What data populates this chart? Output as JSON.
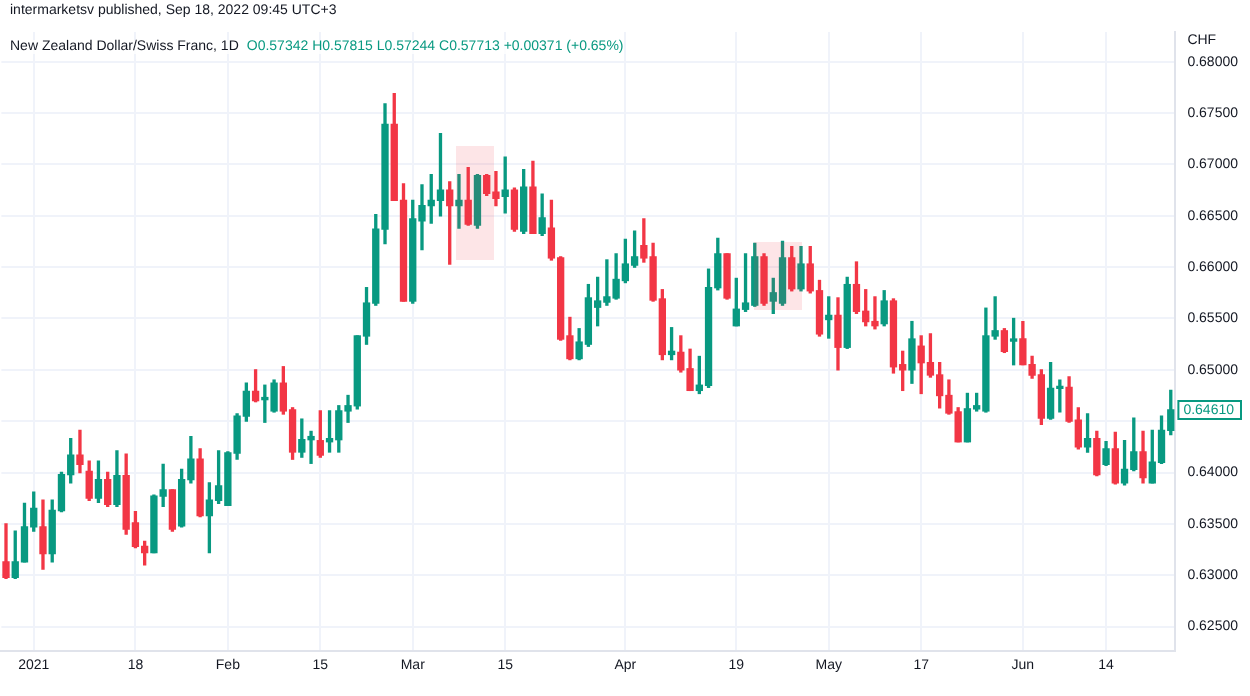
{
  "chart_data": {
    "type": "candlestick",
    "title": "New Zealand Dollar/Swiss Franc, 1D",
    "subtitle": "O0.57342 H0.57815 L0.57244 C0.57713 +0.00371 (+0.65%)",
    "ylabel": "CHF",
    "annotations": [
      "intermarketsv published, Sep 18, 2022 09:45 UTC+3",
      {
        "text": "0.64610",
        "y": 0.6461
      }
    ],
    "categories": [
      null,
      null,
      null,
      "2021",
      null,
      null,
      null,
      null,
      null,
      null,
      null,
      null,
      null,
      null,
      "18",
      null,
      null,
      null,
      null,
      null,
      null,
      null,
      null,
      null,
      "Feb",
      null,
      null,
      null,
      null,
      null,
      null,
      null,
      null,
      null,
      "15",
      null,
      null,
      null,
      null,
      null,
      null,
      null,
      null,
      null,
      "Mar",
      null,
      null,
      null,
      null,
      null,
      null,
      null,
      null,
      null,
      "15",
      null,
      null,
      null,
      null,
      null,
      null,
      null,
      null,
      null,
      null,
      null,
      null,
      "Apr",
      null,
      null,
      null,
      null,
      null,
      null,
      null,
      null,
      null,
      null,
      null,
      "19",
      null,
      null,
      null,
      null,
      null,
      null,
      null,
      null,
      null,
      "May",
      null,
      null,
      null,
      null,
      null,
      null,
      null,
      null,
      null,
      "17",
      null,
      null,
      null,
      null,
      null,
      null,
      null,
      null,
      null,
      null,
      "Jun",
      null,
      null,
      null,
      null,
      null,
      null,
      null,
      null,
      "14",
      null,
      null,
      null,
      null,
      null,
      null,
      null
    ],
    "ohlc": [
      [
        0.6313,
        0.635,
        0.6297,
        0.6298
      ],
      [
        0.6298,
        0.6343,
        0.6297,
        0.6313
      ],
      [
        0.6313,
        0.637,
        0.6313,
        0.6347
      ],
      [
        0.6347,
        0.6381,
        0.6343,
        0.6365
      ],
      [
        0.6347,
        0.6373,
        0.6306,
        0.6321
      ],
      [
        0.6321,
        0.6373,
        0.6313,
        0.6363
      ],
      [
        0.6363,
        0.64,
        0.6362,
        0.6398
      ],
      [
        0.6398,
        0.6433,
        0.639,
        0.6417
      ],
      [
        0.6417,
        0.6441,
        0.64,
        0.6408
      ],
      [
        0.6401,
        0.6411,
        0.6373,
        0.6375
      ],
      [
        0.6375,
        0.6411,
        0.6371,
        0.6393
      ],
      [
        0.6393,
        0.64,
        0.6367,
        0.6369
      ],
      [
        0.6369,
        0.6421,
        0.6367,
        0.6397
      ],
      [
        0.6397,
        0.6418,
        0.634,
        0.6345
      ],
      [
        0.6351,
        0.6362,
        0.6327,
        0.6328
      ],
      [
        0.6328,
        0.6333,
        0.631,
        0.6322
      ],
      [
        0.6322,
        0.6378,
        0.6322,
        0.6377
      ],
      [
        0.6377,
        0.6408,
        0.6367,
        0.6383
      ],
      [
        0.6383,
        0.6383,
        0.6343,
        0.6345
      ],
      [
        0.6348,
        0.6403,
        0.6347,
        0.6393
      ],
      [
        0.6393,
        0.6435,
        0.639,
        0.6413
      ],
      [
        0.6413,
        0.6423,
        0.6357,
        0.6358
      ],
      [
        0.6358,
        0.639,
        0.6322,
        0.6373
      ],
      [
        0.6373,
        0.6421,
        0.637,
        0.6387
      ],
      [
        0.6368,
        0.642,
        0.6368,
        0.6419
      ],
      [
        0.6419,
        0.6457,
        0.6413,
        0.6455
      ],
      [
        0.6455,
        0.6487,
        0.645,
        0.6479
      ],
      [
        0.6479,
        0.65,
        0.6469,
        0.647
      ],
      [
        0.6471,
        0.6485,
        0.6449,
        0.6473
      ],
      [
        0.646,
        0.649,
        0.6459,
        0.6487
      ],
      [
        0.6487,
        0.6503,
        0.6457,
        0.646
      ],
      [
        0.6461,
        0.6463,
        0.6413,
        0.642
      ],
      [
        0.642,
        0.6452,
        0.6415,
        0.6432
      ],
      [
        0.6432,
        0.644,
        0.6409,
        0.6435
      ],
      [
        0.6431,
        0.646,
        0.6415,
        0.6417
      ],
      [
        0.643,
        0.646,
        0.642,
        0.6433
      ],
      [
        0.6432,
        0.6465,
        0.642,
        0.646
      ],
      [
        0.646,
        0.6475,
        0.6449,
        0.6465
      ],
      [
        0.6465,
        0.6533,
        0.6462,
        0.6533
      ],
      [
        0.6533,
        0.658,
        0.6525,
        0.6565
      ],
      [
        0.6565,
        0.6651,
        0.6563,
        0.6637
      ],
      [
        0.6637,
        0.6759,
        0.6623,
        0.6739
      ],
      [
        0.6739,
        0.6769,
        0.6665,
        0.6665
      ],
      [
        0.6665,
        0.6681,
        0.6567,
        0.6567
      ],
      [
        0.6567,
        0.6665,
        0.6565,
        0.6647
      ],
      [
        0.6645,
        0.668,
        0.6617,
        0.666
      ],
      [
        0.666,
        0.669,
        0.6643,
        0.6665
      ],
      [
        0.6665,
        0.673,
        0.665,
        0.6675
      ],
      [
        0.6675,
        0.6683,
        0.6603,
        0.666
      ],
      [
        0.666,
        0.669,
        0.6638,
        0.6665
      ],
      [
        0.6665,
        0.6697,
        0.6641,
        0.6642
      ],
      [
        0.6641,
        0.669,
        0.6638,
        0.6689
      ],
      [
        0.6689,
        0.669,
        0.667,
        0.6672
      ],
      [
        0.6673,
        0.6693,
        0.666,
        0.6667
      ],
      [
        0.6669,
        0.6707,
        0.6653,
        0.6675
      ],
      [
        0.6675,
        0.6677,
        0.6635,
        0.6637
      ],
      [
        0.6635,
        0.6695,
        0.6633,
        0.6678
      ],
      [
        0.6678,
        0.6703,
        0.6633,
        0.6633
      ],
      [
        0.6633,
        0.6671,
        0.6631,
        0.6648
      ],
      [
        0.6638,
        0.6665,
        0.6607,
        0.6609
      ],
      [
        0.6609,
        0.661,
        0.6529,
        0.653
      ],
      [
        0.6533,
        0.6551,
        0.651,
        0.6511
      ],
      [
        0.6511,
        0.654,
        0.651,
        0.6527
      ],
      [
        0.6525,
        0.6583,
        0.6523,
        0.657
      ],
      [
        0.6561,
        0.659,
        0.6543,
        0.6567
      ],
      [
        0.6566,
        0.6607,
        0.6563,
        0.6571
      ],
      [
        0.657,
        0.6613,
        0.6569,
        0.6588
      ],
      [
        0.6587,
        0.6627,
        0.6585,
        0.6603
      ],
      [
        0.6602,
        0.6635,
        0.66,
        0.661
      ],
      [
        0.6621,
        0.6647,
        0.6605,
        0.6609
      ],
      [
        0.661,
        0.6623,
        0.6567,
        0.6568
      ],
      [
        0.6569,
        0.6578,
        0.651,
        0.6515
      ],
      [
        0.6515,
        0.6541,
        0.651,
        0.6518
      ],
      [
        0.6517,
        0.6533,
        0.6498,
        0.65
      ],
      [
        0.6501,
        0.652,
        0.648,
        0.648
      ],
      [
        0.648,
        0.6513,
        0.6477,
        0.6485
      ],
      [
        0.6485,
        0.6598,
        0.6483,
        0.658
      ],
      [
        0.658,
        0.6628,
        0.6578,
        0.6613
      ],
      [
        0.6613,
        0.6613,
        0.6569,
        0.657
      ],
      [
        0.6543,
        0.6589,
        0.6543,
        0.6559
      ],
      [
        0.6559,
        0.6613,
        0.6557,
        0.6565
      ],
      [
        0.6563,
        0.6623,
        0.6562,
        0.661
      ],
      [
        0.661,
        0.6613,
        0.6563,
        0.6565
      ],
      [
        0.6567,
        0.6589,
        0.6555,
        0.6575
      ],
      [
        0.6565,
        0.6625,
        0.6563,
        0.6609
      ],
      [
        0.6609,
        0.662,
        0.6577,
        0.6579
      ],
      [
        0.6579,
        0.662,
        0.6577,
        0.6603
      ],
      [
        0.6603,
        0.662,
        0.6575,
        0.6577
      ],
      [
        0.6577,
        0.6587,
        0.6533,
        0.6535
      ],
      [
        0.6549,
        0.6571,
        0.6531,
        0.6553
      ],
      [
        0.6553,
        0.657,
        0.65,
        0.6522
      ],
      [
        0.6522,
        0.659,
        0.6521,
        0.6583
      ],
      [
        0.6583,
        0.6605,
        0.6555,
        0.6557
      ],
      [
        0.6557,
        0.6578,
        0.6543,
        0.6547
      ],
      [
        0.6547,
        0.6571,
        0.654,
        0.6543
      ],
      [
        0.6545,
        0.6577,
        0.6543,
        0.6567
      ],
      [
        0.6567,
        0.6569,
        0.6497,
        0.6503
      ],
      [
        0.6505,
        0.6518,
        0.648,
        0.65
      ],
      [
        0.65,
        0.6547,
        0.6487,
        0.653
      ],
      [
        0.6523,
        0.6533,
        0.6477,
        0.6507
      ],
      [
        0.6507,
        0.6535,
        0.6493,
        0.6495
      ],
      [
        0.6495,
        0.6507,
        0.6463,
        0.6475
      ],
      [
        0.6475,
        0.649,
        0.6457,
        0.6458
      ],
      [
        0.6459,
        0.6463,
        0.643,
        0.643
      ],
      [
        0.643,
        0.6477,
        0.643,
        0.6462
      ],
      [
        0.6462,
        0.6477,
        0.646,
        0.6465
      ],
      [
        0.646,
        0.656,
        0.6459,
        0.6533
      ],
      [
        0.6533,
        0.6571,
        0.653,
        0.6538
      ],
      [
        0.6538,
        0.654,
        0.6517,
        0.6518
      ],
      [
        0.6528,
        0.655,
        0.6505,
        0.653
      ],
      [
        0.653,
        0.6547,
        0.6505,
        0.6505
      ],
      [
        0.6505,
        0.6513,
        0.6492,
        0.6495
      ],
      [
        0.6495,
        0.65,
        0.6447,
        0.6453
      ],
      [
        0.6453,
        0.6507,
        0.6452,
        0.6482
      ],
      [
        0.6482,
        0.649,
        0.6459,
        0.6483
      ],
      [
        0.6483,
        0.6493,
        0.6449,
        0.645
      ],
      [
        0.6451,
        0.6463,
        0.6423,
        0.6425
      ],
      [
        0.6425,
        0.6457,
        0.642,
        0.6433
      ],
      [
        0.6433,
        0.644,
        0.6397,
        0.6398
      ],
      [
        0.6408,
        0.643,
        0.6407,
        0.6423
      ],
      [
        0.6423,
        0.6439,
        0.6389,
        0.639
      ],
      [
        0.639,
        0.6431,
        0.6388,
        0.6403
      ],
      [
        0.6403,
        0.6453,
        0.6402,
        0.642
      ],
      [
        0.642,
        0.644,
        0.639,
        0.6395
      ],
      [
        0.639,
        0.6441,
        0.639,
        0.641
      ],
      [
        0.641,
        0.6455,
        0.6409,
        0.6441
      ],
      [
        0.6441,
        0.648,
        0.6437,
        0.6461
      ]
    ],
    "ylim": [
      0.6226,
      0.6829
    ],
    "yticks": [
      {
        "value": 0.625,
        "label": "0.62500"
      },
      {
        "value": 0.63,
        "label": "0.63000"
      },
      {
        "value": 0.635,
        "label": "0.63500"
      },
      {
        "value": 0.64,
        "label": "0.64000"
      },
      {
        "value": 0.645,
        "label": null
      },
      {
        "value": 0.65,
        "label": "0.65000"
      },
      {
        "value": 0.655,
        "label": "0.65500"
      },
      {
        "value": 0.66,
        "label": "0.66000"
      },
      {
        "value": 0.665,
        "label": "0.66500"
      },
      {
        "value": 0.67,
        "label": "0.67000"
      },
      {
        "value": 0.675,
        "label": "0.67500"
      },
      {
        "value": 0.68,
        "label": "0.68000"
      }
    ],
    "grid": true,
    "legend": false
  }
}
